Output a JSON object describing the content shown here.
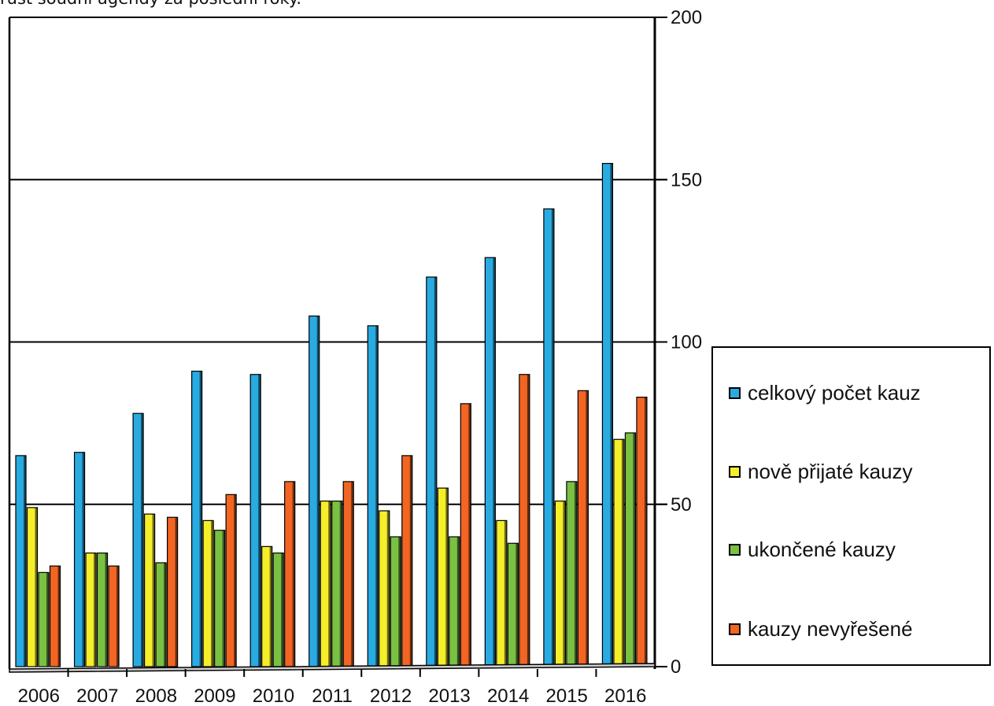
{
  "caption": "růst soudní agendy za poslední roky.",
  "chart_data": {
    "type": "bar",
    "categories": [
      "2006",
      "2007",
      "2008",
      "2009",
      "2010",
      "2011",
      "2012",
      "2013",
      "2014",
      "2015",
      "2016"
    ],
    "series": [
      {
        "name": "celkový počet kauz",
        "color": "#29abe2",
        "values": [
          65,
          66,
          78,
          91,
          90,
          108,
          105,
          120,
          126,
          141,
          155
        ]
      },
      {
        "name": "nově přijaté kauzy",
        "color": "#f5ee2a",
        "values": [
          49,
          35,
          47,
          45,
          37,
          51,
          48,
          55,
          45,
          51,
          70
        ]
      },
      {
        "name": "ukončené kauzy",
        "color": "#7ac143",
        "values": [
          29,
          35,
          32,
          42,
          35,
          51,
          40,
          40,
          38,
          57,
          72
        ]
      },
      {
        "name": "kauzy nevyřešené",
        "color": "#f26522",
        "values": [
          31,
          31,
          46,
          53,
          57,
          57,
          65,
          81,
          90,
          85,
          83
        ]
      }
    ],
    "ylim": [
      0,
      200
    ],
    "yticks": [
      0,
      50,
      100,
      150,
      200
    ],
    "y_axis_side": "right",
    "grid": true,
    "legend_position": "right",
    "title": "",
    "xlabel": "",
    "ylabel": ""
  }
}
